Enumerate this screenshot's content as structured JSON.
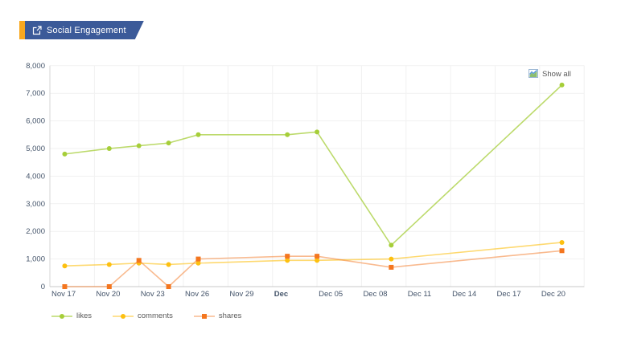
{
  "header": {
    "title": "Social Engagement",
    "accent_color": "#f8a820",
    "banner_color": "#3b5a99"
  },
  "chart_data": {
    "type": "line",
    "title": "Social Engagement",
    "show_all_label": "Show all",
    "grid": true,
    "legend_position": "bottom-left",
    "ylim": [
      0,
      8000
    ],
    "y_tick_step": 1000,
    "y_tick_labels": [
      "0",
      "1,000",
      "2,000",
      "3,000",
      "4,000",
      "5,000",
      "6,000",
      "7,000",
      "8,000"
    ],
    "axis_text_color": "#44546a",
    "x_axis": {
      "unit": "days since Nov 17",
      "range_days": [
        0,
        36
      ],
      "ticks": [
        {
          "label": "Nov 17",
          "day": 0,
          "bold": false
        },
        {
          "label": "Nov 20",
          "day": 3,
          "bold": false
        },
        {
          "label": "Nov 23",
          "day": 6,
          "bold": false
        },
        {
          "label": "Nov 26",
          "day": 9,
          "bold": false
        },
        {
          "label": "Nov 29",
          "day": 12,
          "bold": false
        },
        {
          "label": "Dec",
          "day": 15,
          "bold": true
        },
        {
          "label": "Dec 05",
          "day": 18,
          "bold": false
        },
        {
          "label": "Dec 08",
          "day": 21,
          "bold": false
        },
        {
          "label": "Dec 11",
          "day": 24,
          "bold": false
        },
        {
          "label": "Dec 14",
          "day": 27,
          "bold": false
        },
        {
          "label": "Dec 17",
          "day": 30,
          "bold": false
        },
        {
          "label": "Dec 20",
          "day": 33,
          "bold": false
        },
        {
          "label": "",
          "day": 36,
          "bold": false
        }
      ]
    },
    "series": [
      {
        "name": "likes",
        "color": "#a6ce39",
        "marker": "circle",
        "line_opacity": 0.75,
        "points": [
          {
            "date": "Nov 18",
            "day": 1,
            "value": 4800
          },
          {
            "date": "Nov 21",
            "day": 4,
            "value": 5000
          },
          {
            "date": "Nov 23",
            "day": 6,
            "value": 5100
          },
          {
            "date": "Nov 25",
            "day": 8,
            "value": 5200
          },
          {
            "date": "Nov 27",
            "day": 10,
            "value": 5500
          },
          {
            "date": "Dec 03",
            "day": 16,
            "value": 5500
          },
          {
            "date": "Dec 05",
            "day": 18,
            "value": 5600
          },
          {
            "date": "Dec 10",
            "day": 23,
            "value": 1500
          },
          {
            "date": "Dec 22",
            "day": 34.5,
            "value": 7300
          }
        ]
      },
      {
        "name": "comments",
        "color": "#fdc010",
        "marker": "circle",
        "line_opacity": 0.6,
        "points": [
          {
            "date": "Nov 18",
            "day": 1,
            "value": 750
          },
          {
            "date": "Nov 21",
            "day": 4,
            "value": 800
          },
          {
            "date": "Nov 23",
            "day": 6,
            "value": 850
          },
          {
            "date": "Nov 25",
            "day": 8,
            "value": 800
          },
          {
            "date": "Nov 27",
            "day": 10,
            "value": 850
          },
          {
            "date": "Dec 03",
            "day": 16,
            "value": 950
          },
          {
            "date": "Dec 05",
            "day": 18,
            "value": 950
          },
          {
            "date": "Dec 10",
            "day": 23,
            "value": 1000
          },
          {
            "date": "Dec 22",
            "day": 34.5,
            "value": 1600
          }
        ]
      },
      {
        "name": "shares",
        "color": "#f4761f",
        "marker": "square",
        "line_opacity": 0.5,
        "points": [
          {
            "date": "Nov 18",
            "day": 1,
            "value": 0
          },
          {
            "date": "Nov 21",
            "day": 4,
            "value": 0
          },
          {
            "date": "Nov 23",
            "day": 6,
            "value": 950
          },
          {
            "date": "Nov 25",
            "day": 8,
            "value": 0
          },
          {
            "date": "Nov 27",
            "day": 10,
            "value": 1000
          },
          {
            "date": "Dec 03",
            "day": 16,
            "value": 1100
          },
          {
            "date": "Dec 05",
            "day": 18,
            "value": 1100
          },
          {
            "date": "Dec 10",
            "day": 23,
            "value": 700
          },
          {
            "date": "Dec 22",
            "day": 34.5,
            "value": 1300
          }
        ]
      }
    ]
  }
}
